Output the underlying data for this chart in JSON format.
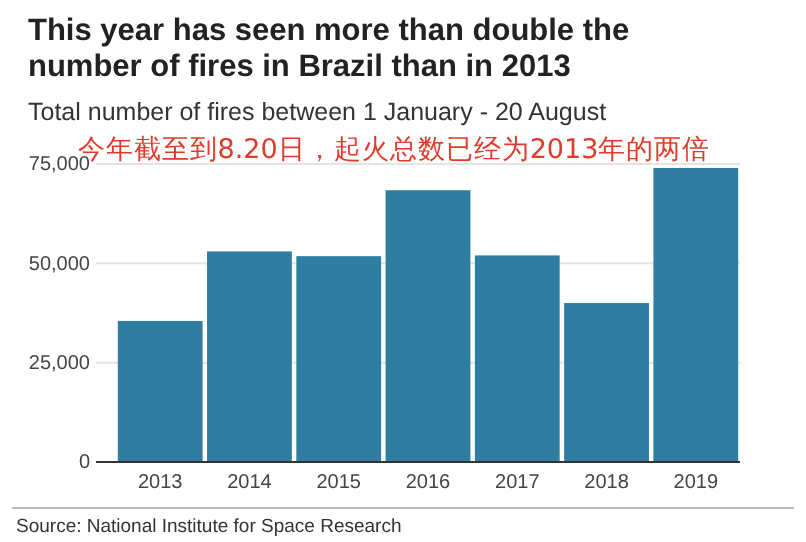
{
  "chart_data": {
    "type": "bar",
    "title": "This year has seen more than double the number of fires in Brazil than in 2013",
    "subtitle": "Total number of fires between 1 January - 20 August",
    "categories": [
      "2013",
      "2014",
      "2015",
      "2016",
      "2017",
      "2018",
      "2019"
    ],
    "values": [
      35500,
      53000,
      51800,
      68400,
      52000,
      40000,
      74000
    ],
    "color": "#2f7ea1",
    "ylim": [
      0,
      75000
    ],
    "yticks": [
      {
        "value": 0,
        "label": "0"
      },
      {
        "value": 25000,
        "label": "25,000"
      },
      {
        "value": 50000,
        "label": "50,000"
      },
      {
        "value": 75000,
        "label": "75,000"
      }
    ],
    "grid": "y",
    "annotations": [
      "今年截至到8.20日，起火总数已经为2013年的两倍",
      "Source: National Institute for Space Research"
    ]
  }
}
